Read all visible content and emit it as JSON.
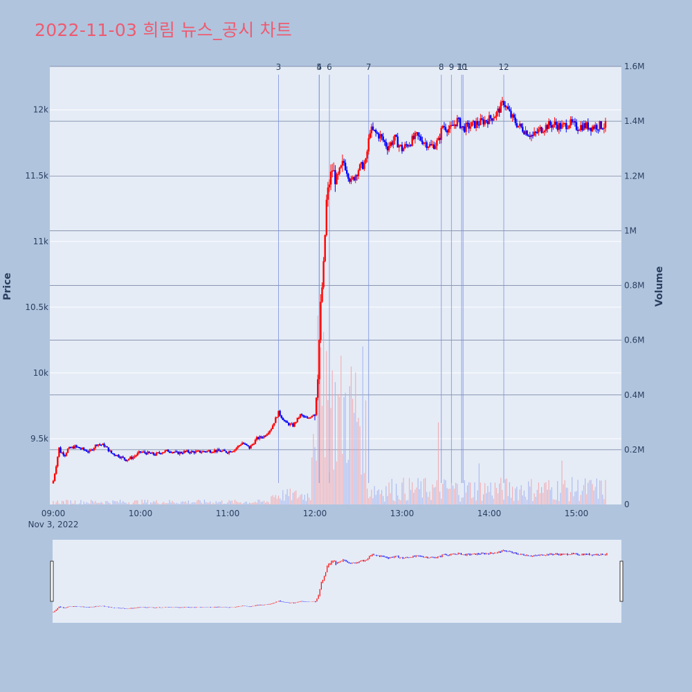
{
  "title": "2022-11-03 희림 뉴스_공시 차트",
  "colors": {
    "background": "#b0c4de",
    "plot_bg": "#e5ecf6",
    "up": "#ff0000",
    "down": "#0000ff",
    "title": "#ef5a6f",
    "vline": "#7a8fe0"
  },
  "chart_data": {
    "type": "candlestick",
    "xlabel": "",
    "x_tick_labels": [
      "09:00",
      "10:00",
      "11:00",
      "12:00",
      "13:00",
      "14:00",
      "15:00"
    ],
    "x_date_label": "Nov 3, 2022",
    "ylabel": "Price",
    "y_tick_labels": [
      "9.5k",
      "10k",
      "10.5k",
      "11k",
      "11.5k",
      "12k"
    ],
    "y_ticks": [
      9500,
      10000,
      10500,
      11000,
      11500,
      12000
    ],
    "ylim": [
      9000,
      12330
    ],
    "y2label": "Volume",
    "y2_tick_labels": [
      "0",
      "0.2M",
      "0.4M",
      "0.6M",
      "0.8M",
      "1M",
      "1.2M",
      "1.4M",
      "1.6M"
    ],
    "y2_ticks": [
      0,
      200000,
      400000,
      600000,
      800000,
      1000000,
      1200000,
      1400000,
      1600000
    ],
    "y2lim": [
      0,
      1600000
    ],
    "x_range": [
      "09:00",
      "15:30"
    ],
    "news_markers": [
      {
        "label": "3",
        "time": "11:35"
      },
      {
        "label": "4",
        "time": "12:03"
      },
      {
        "label": "5",
        "time": "12:03"
      },
      {
        "label": "6",
        "time": "12:10"
      },
      {
        "label": "7",
        "time": "12:37"
      },
      {
        "label": "8",
        "time": "13:27"
      },
      {
        "label": "9",
        "time": "13:34"
      },
      {
        "label": "10",
        "time": "13:41"
      },
      {
        "label": "11",
        "time": "13:42"
      },
      {
        "label": "12",
        "time": "14:10"
      }
    ],
    "price_path": [
      [
        "09:00",
        9180
      ],
      [
        "09:02",
        9300
      ],
      [
        "09:04",
        9430
      ],
      [
        "09:05",
        9400
      ],
      [
        "09:08",
        9380
      ],
      [
        "09:10",
        9420
      ],
      [
        "09:15",
        9440
      ],
      [
        "09:20",
        9420
      ],
      [
        "09:25",
        9400
      ],
      [
        "09:30",
        9460
      ],
      [
        "09:35",
        9450
      ],
      [
        "09:40",
        9390
      ],
      [
        "09:45",
        9370
      ],
      [
        "09:50",
        9340
      ],
      [
        "09:55",
        9360
      ],
      [
        "10:00",
        9400
      ],
      [
        "10:05",
        9390
      ],
      [
        "10:10",
        9380
      ],
      [
        "10:15",
        9400
      ],
      [
        "10:20",
        9410
      ],
      [
        "10:25",
        9390
      ],
      [
        "10:30",
        9400
      ],
      [
        "10:40",
        9400
      ],
      [
        "10:50",
        9410
      ],
      [
        "11:00",
        9400
      ],
      [
        "11:05",
        9420
      ],
      [
        "11:10",
        9470
      ],
      [
        "11:15",
        9430
      ],
      [
        "11:20",
        9500
      ],
      [
        "11:25",
        9520
      ],
      [
        "11:30",
        9580
      ],
      [
        "11:35",
        9700
      ],
      [
        "11:40",
        9620
      ],
      [
        "11:45",
        9600
      ],
      [
        "11:50",
        9680
      ],
      [
        "11:55",
        9650
      ],
      [
        "12:00",
        9700
      ],
      [
        "12:02",
        10000
      ],
      [
        "12:04",
        10500
      ],
      [
        "12:06",
        10800
      ],
      [
        "12:08",
        11300
      ],
      [
        "12:10",
        11450
      ],
      [
        "12:12",
        11550
      ],
      [
        "12:15",
        11450
      ],
      [
        "12:20",
        11600
      ],
      [
        "12:25",
        11450
      ],
      [
        "12:30",
        11550
      ],
      [
        "12:35",
        11600
      ],
      [
        "12:38",
        11850
      ],
      [
        "12:45",
        11800
      ],
      [
        "12:50",
        11720
      ],
      [
        "12:55",
        11780
      ],
      [
        "13:00",
        11700
      ],
      [
        "13:05",
        11750
      ],
      [
        "13:10",
        11800
      ],
      [
        "13:15",
        11760
      ],
      [
        "13:20",
        11720
      ],
      [
        "13:25",
        11760
      ],
      [
        "13:28",
        11880
      ],
      [
        "13:33",
        11850
      ],
      [
        "13:38",
        11920
      ],
      [
        "13:42",
        11860
      ],
      [
        "13:50",
        11890
      ],
      [
        "14:00",
        11930
      ],
      [
        "14:05",
        11970
      ],
      [
        "14:10",
        12060
      ],
      [
        "14:15",
        11950
      ],
      [
        "14:20",
        11880
      ],
      [
        "14:25",
        11840
      ],
      [
        "14:30",
        11800
      ],
      [
        "14:35",
        11850
      ],
      [
        "14:40",
        11880
      ],
      [
        "14:45",
        11890
      ],
      [
        "14:50",
        11870
      ],
      [
        "14:55",
        11900
      ],
      [
        "15:00",
        11870
      ],
      [
        "15:05",
        11880
      ],
      [
        "15:10",
        11870
      ],
      [
        "15:15",
        11880
      ],
      [
        "15:20",
        11880
      ]
    ]
  }
}
